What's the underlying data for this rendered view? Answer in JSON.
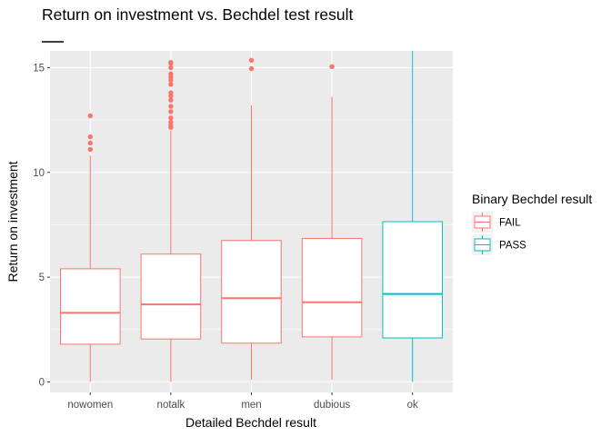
{
  "chart_data": {
    "type": "boxplot",
    "title": "Return on investment vs. Bechdel test result",
    "xlabel": "Detailed Bechdel result",
    "ylabel": "Return on investment",
    "categories": [
      "nowomen",
      "notalk",
      "men",
      "dubious",
      "ok"
    ],
    "ylim": [
      -0.5,
      15.8
    ],
    "yticks": [
      0,
      5,
      10,
      15
    ],
    "grid": true,
    "legend": {
      "title": "Binary Bechdel result",
      "position": "right",
      "entries": [
        {
          "label": "FAIL",
          "color": "#F8766D"
        },
        {
          "label": "PASS",
          "color": "#00BFC4"
        }
      ]
    },
    "boxes": [
      {
        "category": "nowomen",
        "group": "FAIL",
        "min": 0.0,
        "q1": 1.8,
        "median": 3.3,
        "q3": 5.4,
        "max": 10.8,
        "outliers": [
          11.1,
          11.4,
          11.7,
          12.7
        ]
      },
      {
        "category": "notalk",
        "group": "FAIL",
        "min": 0.0,
        "q1": 2.05,
        "median": 3.7,
        "q3": 6.1,
        "max": 12.0,
        "outliers": [
          12.15,
          12.25,
          12.4,
          12.6,
          12.9,
          13.15,
          13.45,
          13.65,
          13.8,
          14.2,
          14.4,
          14.55,
          14.7,
          15.0,
          15.2,
          15.25
        ]
      },
      {
        "category": "men",
        "group": "FAIL",
        "min": 0.1,
        "q1": 1.85,
        "median": 4.0,
        "q3": 6.75,
        "max": 13.2,
        "outliers": [
          14.95,
          15.35
        ]
      },
      {
        "category": "dubious",
        "group": "FAIL",
        "min": 0.1,
        "q1": 2.15,
        "median": 3.8,
        "q3": 6.85,
        "max": 13.6,
        "outliers": [
          15.05
        ]
      },
      {
        "category": "ok",
        "group": "PASS",
        "min": 0.0,
        "q1": 2.1,
        "median": 4.2,
        "q3": 7.65,
        "max": 15.8,
        "outliers": []
      }
    ]
  }
}
